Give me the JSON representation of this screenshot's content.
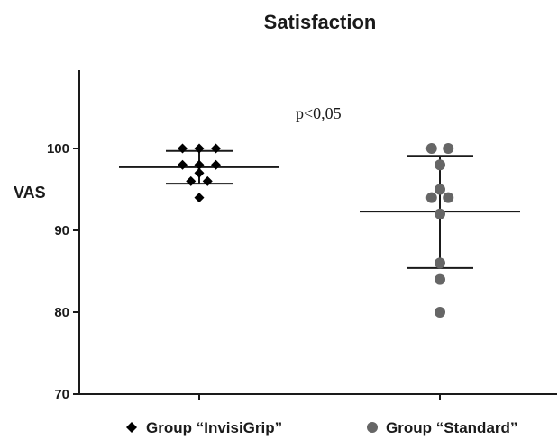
{
  "chart_data": {
    "type": "scatter",
    "title": "Satisfaction",
    "ylabel": "VAS",
    "xlabel": "",
    "ylim": [
      70,
      110
    ],
    "yticks": [
      70,
      80,
      90,
      100
    ],
    "grid": false,
    "legend_position": "bottom",
    "annotation": "p<0,05",
    "series": [
      {
        "name": "Group “InvisiGrip”",
        "marker": "diamond",
        "color": "#000000",
        "values": [
          100,
          100,
          100,
          98,
          98,
          98,
          97,
          96,
          96,
          94
        ],
        "mean": 97.7,
        "sd_upper": 99.7,
        "sd_lower": 95.7
      },
      {
        "name": "Group “Standard”",
        "marker": "circle",
        "color": "#666666",
        "values": [
          100,
          100,
          98,
          95,
          94,
          94,
          92,
          86,
          84,
          80
        ],
        "mean": 92.3,
        "sd_upper": 99.1,
        "sd_lower": 85.4
      }
    ]
  }
}
